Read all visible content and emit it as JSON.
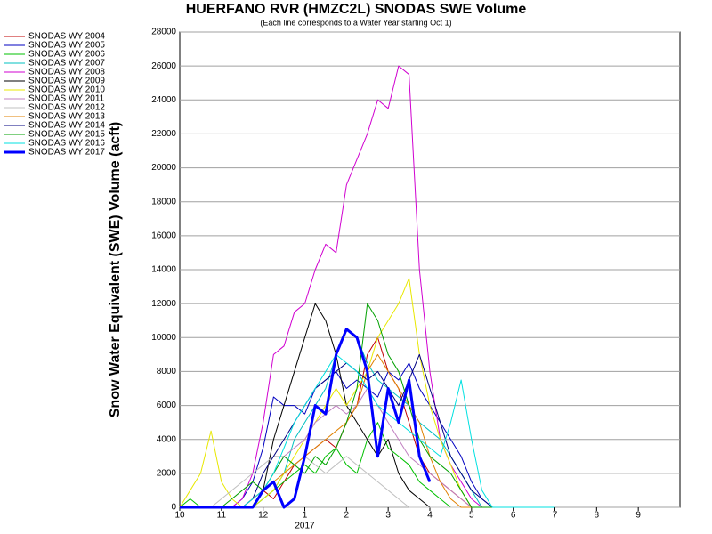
{
  "chart_data": {
    "type": "line",
    "title": "HUERFANO RVR (HMZC2L) SNODAS SWE Volume",
    "subtitle": "(Each line corresponds to a Water Year starting Oct 1)",
    "y_label": "Snow Water Equivalent (SWE) Volume (acft)",
    "x": [
      0,
      0.25,
      0.5,
      0.75,
      1,
      1.25,
      1.5,
      1.75,
      2,
      2.25,
      2.5,
      2.75,
      3,
      3.25,
      3.5,
      3.75,
      4,
      4.25,
      4.5,
      4.75,
      5,
      5.25,
      5.5,
      5.75,
      6,
      6.25,
      6.5,
      6.75,
      7,
      7.25,
      7.5,
      7.75,
      8,
      8.25,
      8.5,
      8.75,
      9
    ],
    "xlim": [
      0,
      12
    ],
    "xticks": [
      {
        "value": 0,
        "label": "10"
      },
      {
        "value": 1,
        "label": "11"
      },
      {
        "value": 2,
        "label": "12"
      },
      {
        "value": 3,
        "label": "1"
      },
      {
        "value": 4,
        "label": "2"
      },
      {
        "value": 5,
        "label": "3"
      },
      {
        "value": 6,
        "label": "4"
      },
      {
        "value": 7,
        "label": "5"
      },
      {
        "value": 8,
        "label": "6"
      },
      {
        "value": 9,
        "label": "7"
      },
      {
        "value": 10,
        "label": "8"
      },
      {
        "value": 11,
        "label": "9"
      }
    ],
    "x_sublabels": [
      {
        "value": 3,
        "label": "2017"
      }
    ],
    "ylim": [
      0,
      28000
    ],
    "yticks": [
      0,
      2000,
      4000,
      6000,
      8000,
      10000,
      12000,
      14000,
      16000,
      18000,
      20000,
      22000,
      24000,
      26000,
      28000
    ],
    "grid": true,
    "legend": "top-left-outside",
    "series": [
      {
        "name": "SNODAS WY 2004",
        "color": "#c00000",
        "values": [
          0,
          0,
          0,
          0,
          0,
          0,
          0,
          500,
          1000,
          500,
          1500,
          2500,
          3000,
          3500,
          4000,
          3500,
          5000,
          6000,
          9000,
          10000,
          8000,
          7000,
          5000,
          3000,
          2000,
          1500,
          1000,
          500,
          0,
          0,
          0,
          0,
          0,
          0,
          0,
          0,
          0
        ]
      },
      {
        "name": "SNODAS WY 2005",
        "color": "#0000c0",
        "values": [
          0,
          0,
          0,
          0,
          0,
          0,
          500,
          1500,
          3500,
          6500,
          6000,
          6000,
          5500,
          7000,
          7500,
          8000,
          7000,
          7500,
          7000,
          6500,
          8000,
          7500,
          8500,
          7000,
          6000,
          5000,
          4000,
          3000,
          1500,
          500,
          0,
          0,
          0,
          0,
          0,
          0,
          0
        ]
      },
      {
        "name": "SNODAS WY 2006",
        "color": "#00c000",
        "values": [
          0,
          500,
          0,
          0,
          0,
          0,
          0,
          0,
          500,
          1000,
          1500,
          2000,
          2500,
          2000,
          3000,
          3500,
          2500,
          2000,
          4000,
          5000,
          3500,
          3000,
          2500,
          1500,
          1000,
          500,
          0,
          0,
          0,
          0,
          0,
          0,
          0,
          0,
          0,
          0,
          0
        ]
      },
      {
        "name": "SNODAS WY 2007",
        "color": "#00c0c0",
        "values": [
          0,
          0,
          0,
          0,
          0,
          0,
          0,
          0,
          500,
          1000,
          2000,
          4000,
          5000,
          6000,
          7000,
          9000,
          10500,
          10000,
          8500,
          7500,
          7000,
          6500,
          6000,
          5000,
          4500,
          4000,
          3000,
          2000,
          1000,
          0,
          0,
          0,
          0,
          0,
          0,
          0,
          0
        ]
      },
      {
        "name": "SNODAS WY 2008",
        "color": "#d000d0",
        "values": [
          0,
          0,
          0,
          0,
          0,
          0,
          500,
          2000,
          5000,
          9000,
          9500,
          11500,
          12000,
          14000,
          15500,
          15000,
          19000,
          20500,
          22000,
          24000,
          23500,
          26000,
          25500,
          14000,
          8000,
          4000,
          2500,
          1500,
          500,
          0,
          0,
          0,
          0,
          0,
          0,
          0,
          0
        ]
      },
      {
        "name": "SNODAS WY 2009",
        "color": "#000000",
        "values": [
          0,
          0,
          0,
          0,
          0,
          0,
          0,
          0,
          1000,
          4000,
          6000,
          8000,
          10000,
          12000,
          11000,
          9000,
          6000,
          5000,
          4000,
          3000,
          4000,
          2000,
          1000,
          500,
          0,
          0,
          0,
          0,
          0,
          0,
          0,
          0,
          0,
          0,
          0,
          0,
          0
        ]
      },
      {
        "name": "SNODAS WY 2010",
        "color": "#e8e800",
        "values": [
          0,
          1000,
          2000,
          4500,
          1500,
          500,
          0,
          0,
          500,
          1000,
          2000,
          3000,
          4000,
          5000,
          6000,
          7000,
          6000,
          7000,
          8000,
          10000,
          11000,
          12000,
          13500,
          9000,
          6000,
          4000,
          2500,
          1000,
          0,
          0,
          0,
          0,
          0,
          0,
          0,
          0,
          0
        ]
      },
      {
        "name": "SNODAS WY 2011",
        "color": "#c080c0",
        "values": [
          0,
          0,
          0,
          0,
          0,
          0,
          0,
          500,
          1000,
          2000,
          3000,
          3500,
          4000,
          5000,
          5500,
          6000,
          5500,
          6000,
          7000,
          6000,
          5000,
          4000,
          3000,
          2500,
          2000,
          1500,
          1000,
          500,
          0,
          0,
          0,
          0,
          0,
          0,
          0,
          0,
          0
        ]
      },
      {
        "name": "SNODAS WY 2012",
        "color": "#c0c0c0",
        "values": [
          0,
          0,
          0,
          0,
          500,
          1000,
          1500,
          2000,
          2500,
          3000,
          3000,
          2500,
          3000,
          2500,
          2000,
          2500,
          3000,
          2500,
          2000,
          1500,
          1000,
          500,
          0,
          0,
          0,
          0,
          0,
          0,
          0,
          0,
          0,
          0,
          0,
          0,
          0,
          0,
          0
        ]
      },
      {
        "name": "SNODAS WY 2013",
        "color": "#e08000",
        "values": [
          0,
          0,
          0,
          0,
          0,
          0,
          0,
          500,
          1000,
          1500,
          2000,
          2500,
          3000,
          3500,
          4000,
          4500,
          5000,
          6000,
          8000,
          9000,
          8000,
          7000,
          6000,
          5000,
          3000,
          1500,
          500,
          0,
          0,
          0,
          0,
          0,
          0,
          0,
          0,
          0,
          0
        ]
      },
      {
        "name": "SNODAS WY 2014",
        "color": "#000080",
        "values": [
          0,
          0,
          0,
          0,
          0,
          0,
          0,
          500,
          2000,
          3000,
          4000,
          5000,
          6000,
          7000,
          7500,
          8000,
          8500,
          8000,
          7500,
          8000,
          7000,
          6000,
          7500,
          9000,
          7000,
          5000,
          3000,
          2000,
          1000,
          500,
          0,
          0,
          0,
          0,
          0,
          0,
          0
        ]
      },
      {
        "name": "SNODAS WY 2015",
        "color": "#00a000",
        "values": [
          0,
          0,
          0,
          0,
          0,
          500,
          1000,
          1500,
          1000,
          2000,
          3000,
          2500,
          2000,
          3000,
          2500,
          3500,
          5000,
          7000,
          12000,
          11000,
          9000,
          8000,
          6000,
          4000,
          3000,
          2500,
          2000,
          1000,
          0,
          0,
          0,
          0,
          0,
          0,
          0,
          0,
          0
        ]
      },
      {
        "name": "SNODAS WY 2016",
        "color": "#00e0e0",
        "values": [
          0,
          0,
          0,
          0,
          0,
          0,
          0,
          500,
          1000,
          2000,
          3500,
          5000,
          6000,
          7000,
          8000,
          9000,
          8500,
          8000,
          7000,
          6000,
          5500,
          5000,
          4500,
          4000,
          3500,
          3000,
          5000,
          7500,
          4000,
          1000,
          0,
          0,
          0,
          0,
          0,
          0,
          0
        ]
      },
      {
        "name": "SNODAS WY 2017",
        "color": "#0000ff",
        "linewidth": 3,
        "values": [
          0,
          0,
          0,
          0,
          0,
          0,
          0,
          0,
          1000,
          1500,
          0,
          500,
          3000,
          6000,
          5500,
          9000,
          10500,
          10000,
          8000,
          3000,
          7000,
          5000,
          7500,
          3000,
          1500,
          null,
          null,
          null,
          null,
          null,
          null,
          null,
          null,
          null,
          null,
          null,
          null
        ]
      }
    ]
  }
}
